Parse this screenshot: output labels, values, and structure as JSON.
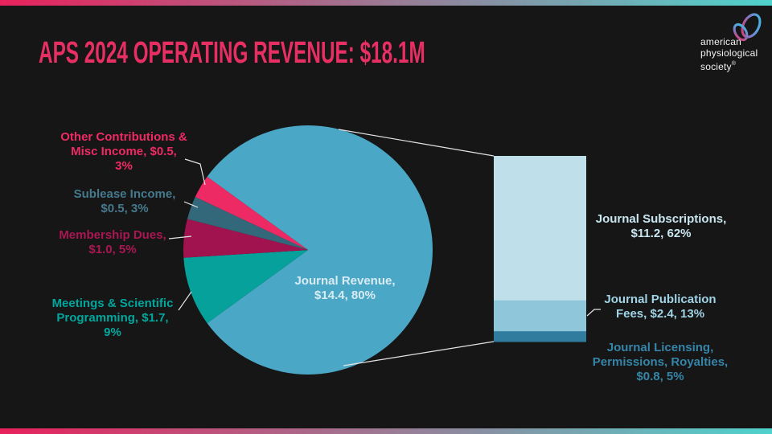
{
  "slide": {
    "title": "APS 2024 OPERATING REVENUE: $18.1M",
    "title_color": "#E72F63",
    "background_color": "#161616",
    "accent_gradient": [
      "#E8215C",
      "#4FD2CC"
    ]
  },
  "logo": {
    "icon": "aps-heart-icon",
    "lines": [
      "american",
      "physiological",
      "society"
    ],
    "mark": "®"
  },
  "chart_data": {
    "type": "bar-of-pie",
    "title": "APS 2024 Operating Revenue: $18.1M",
    "total_musd": 18.1,
    "legend": "none",
    "grid": "off",
    "pie": {
      "start_angle_deg": 306,
      "slices": [
        {
          "id": "journal-revenue",
          "name": "Journal Revenue",
          "value_musd": 14.4,
          "pct": 80,
          "color": "#4AA7C6",
          "label_color": "#D9EBF3",
          "label_lines": [
            "Journal Revenue,",
            "$14.4, 80%"
          ]
        },
        {
          "id": "meetings-scientific-programming",
          "name": "Meetings & Scientific Programming",
          "value_musd": 1.7,
          "pct": 9,
          "color": "#05A19A",
          "label_color": "#00A79D",
          "label_lines": [
            "Meetings & Scientific",
            "Programming, $1.7,",
            "9%"
          ]
        },
        {
          "id": "membership-dues",
          "name": "Membership Dues",
          "value_musd": 1.0,
          "pct": 5,
          "color": "#A0134E",
          "label_color": "#AA1753",
          "label_lines": [
            "Membership Dues,",
            "$1.0, 5%"
          ]
        },
        {
          "id": "sublease-income",
          "name": "Sublease Income",
          "value_musd": 0.5,
          "pct": 3,
          "color": "#33677A",
          "label_color": "#46798D",
          "label_lines": [
            "Sublease Income,",
            "$0.5, 3%"
          ]
        },
        {
          "id": "other-contributions-misc-income",
          "name": "Other Contributions & Misc Income",
          "value_musd": 0.5,
          "pct": 3,
          "color": "#EE2A64",
          "label_color": "#EE2A64",
          "label_lines": [
            "Other Contributions &",
            "Misc Income, $0.5,",
            "3%"
          ]
        }
      ]
    },
    "bar": {
      "represents": "Journal Revenue breakdown",
      "segments": [
        {
          "id": "journal-subscriptions",
          "name": "Journal Subscriptions",
          "value_musd": 11.2,
          "pct": 62,
          "color": "#BFE0EA",
          "label_color": "#C9E6F0",
          "label_lines": [
            "Journal Subscriptions,",
            "$11.2, 62%"
          ]
        },
        {
          "id": "journal-publication-fees",
          "name": "Journal Publication Fees",
          "value_musd": 2.4,
          "pct": 13,
          "color": "#8FC6DA",
          "label_color": "#9FD3E5",
          "label_lines": [
            "Journal Publication",
            "Fees, $2.4, 13%"
          ]
        },
        {
          "id": "journal-licensing-permissions-royalties",
          "name": "Journal Licensing, Permissions, Royalties",
          "value_musd": 0.8,
          "pct": 5,
          "color": "#2F7C9E",
          "label_color": "#3585A8",
          "label_lines": [
            "Journal Licensing,",
            "Permissions, Royalties,",
            "$0.8, 5%"
          ]
        }
      ]
    }
  }
}
